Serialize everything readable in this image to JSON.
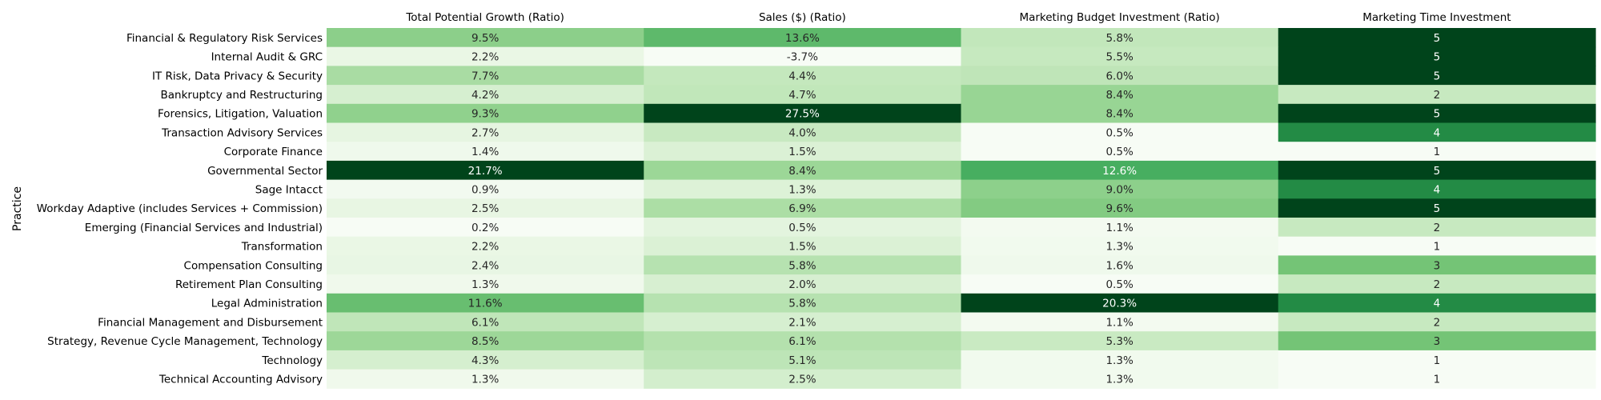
{
  "chart_data": {
    "type": "heatmap",
    "colormap": "Greens",
    "ylabel": "Practice",
    "columns": [
      "Total Potential Growth (Ratio)",
      "Sales ($) (Ratio)",
      "Marketing Budget Investment (Ratio)",
      "Marketing Time Investment"
    ],
    "rows": [
      "Financial & Regulatory Risk Services",
      "Internal Audit & GRC",
      "IT Risk, Data Privacy & Security",
      "Bankruptcy and Restructuring",
      "Forensics, Litigation, Valuation",
      "Transaction Advisory Services",
      "Corporate Finance ",
      "Governmental Sector",
      "Sage Intacct",
      "Workday Adaptive (includes Services + Commission)",
      "Emerging (Financial Services and Industrial)",
      "Transformation",
      "Compensation Consulting",
      "Retirement Plan Consulting",
      "Legal Administration",
      "Financial Management and Disbursement",
      "Strategy, Revenue Cycle Management, Technology",
      "Technology",
      "Technical Accounting Advisory"
    ],
    "labels": [
      [
        "9.5%",
        "13.6%",
        "5.8%",
        "5"
      ],
      [
        "2.2%",
        "-3.7%",
        "5.5%",
        "5"
      ],
      [
        "7.7%",
        "4.4%",
        "6.0%",
        "5"
      ],
      [
        "4.2%",
        "4.7%",
        "8.4%",
        "2"
      ],
      [
        "9.3%",
        "27.5%",
        "8.4%",
        "5"
      ],
      [
        "2.7%",
        "4.0%",
        "0.5%",
        "4"
      ],
      [
        "1.4%",
        "1.5%",
        "0.5%",
        "1"
      ],
      [
        "21.7%",
        "8.4%",
        "12.6%",
        "5"
      ],
      [
        "0.9%",
        "1.3%",
        "9.0%",
        "4"
      ],
      [
        "2.5%",
        "6.9%",
        "9.6%",
        "5"
      ],
      [
        "0.2%",
        "0.5%",
        "1.1%",
        "2"
      ],
      [
        "2.2%",
        "1.5%",
        "1.3%",
        "1"
      ],
      [
        "2.4%",
        "5.8%",
        "1.6%",
        "3"
      ],
      [
        "1.3%",
        "2.0%",
        "0.5%",
        "2"
      ],
      [
        "11.6%",
        "5.8%",
        "20.3%",
        "4"
      ],
      [
        "6.1%",
        "2.1%",
        "1.1%",
        "2"
      ],
      [
        "8.5%",
        "6.1%",
        "5.3%",
        "3"
      ],
      [
        "4.3%",
        "5.1%",
        "1.3%",
        "1"
      ],
      [
        "1.3%",
        "2.5%",
        "1.3%",
        "1"
      ]
    ],
    "values": [
      [
        9.5,
        13.6,
        5.8,
        5
      ],
      [
        2.2,
        -3.7,
        5.5,
        5
      ],
      [
        7.7,
        4.4,
        6.0,
        5
      ],
      [
        4.2,
        4.7,
        8.4,
        2
      ],
      [
        9.3,
        27.5,
        8.4,
        5
      ],
      [
        2.7,
        4.0,
        0.5,
        4
      ],
      [
        1.4,
        1.5,
        0.5,
        1
      ],
      [
        21.7,
        8.4,
        12.6,
        5
      ],
      [
        0.9,
        1.3,
        9.0,
        4
      ],
      [
        2.5,
        6.9,
        9.6,
        5
      ],
      [
        0.2,
        0.5,
        1.1,
        2
      ],
      [
        2.2,
        1.5,
        1.3,
        1
      ],
      [
        2.4,
        5.8,
        1.6,
        3
      ],
      [
        1.3,
        2.0,
        0.5,
        2
      ],
      [
        11.6,
        5.8,
        20.3,
        4
      ],
      [
        6.1,
        2.1,
        1.1,
        2
      ],
      [
        8.5,
        6.1,
        5.3,
        3
      ],
      [
        4.3,
        5.1,
        1.3,
        1
      ],
      [
        1.3,
        2.5,
        1.3,
        1
      ]
    ],
    "color_scale": "per-column",
    "grid": false,
    "legend": "none"
  }
}
